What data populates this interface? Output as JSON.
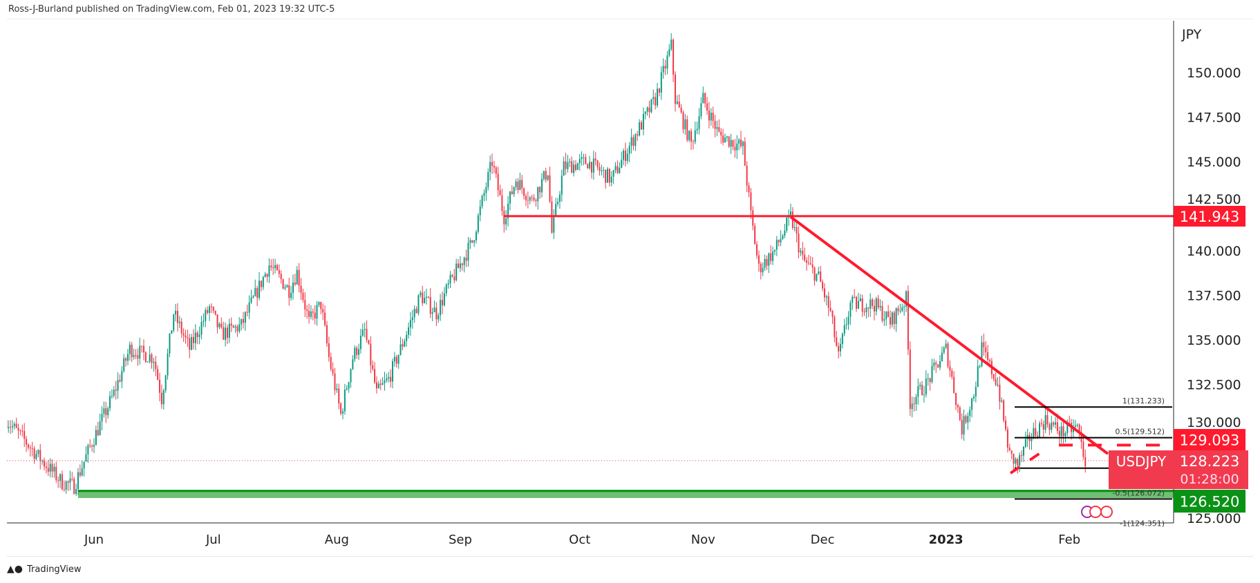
{
  "header": {
    "published": "Ross-J-Burland published on TradingView.com, Feb 01, 2023 19:32 UTC-5"
  },
  "footer": {
    "brand": "TradingView"
  },
  "colors": {
    "up": "#089981",
    "down": "#f23645",
    "line": "#ff1a2e",
    "green": "#0a9216",
    "band": "#4caf50"
  },
  "chart_data": {
    "type": "candlestick",
    "symbol": "USDJPY",
    "currency_label": "JPY",
    "x_unit": "days since 2022-06-01",
    "key_prices": [
      [
        -22,
        130.5
      ],
      [
        -18,
        129.5
      ],
      [
        -13,
        128.2
      ],
      [
        -8,
        127
      ],
      [
        -5,
        126.8
      ],
      [
        -1,
        129
      ],
      [
        5,
        132
      ],
      [
        9,
        134.5
      ],
      [
        15,
        134
      ],
      [
        17,
        131.7
      ],
      [
        20,
        136.5
      ],
      [
        24,
        134.5
      ],
      [
        29,
        136.8
      ],
      [
        32,
        135.3
      ],
      [
        37,
        135.8
      ],
      [
        44,
        139.2
      ],
      [
        49,
        137.8
      ],
      [
        51,
        138.8
      ],
      [
        54,
        136
      ],
      [
        57,
        137
      ],
      [
        59,
        134
      ],
      [
        62,
        130.8
      ],
      [
        65,
        134
      ],
      [
        68,
        135.5
      ],
      [
        71,
        132
      ],
      [
        74,
        132.8
      ],
      [
        77,
        134.5
      ],
      [
        82,
        137.5
      ],
      [
        86,
        136.5
      ],
      [
        89,
        138
      ],
      [
        95,
        140.5
      ],
      [
        100,
        145
      ],
      [
        103,
        141.9
      ],
      [
        106,
        144
      ],
      [
        110,
        142.8
      ],
      [
        114,
        144.5
      ],
      [
        115,
        141
      ],
      [
        118,
        144.7
      ],
      [
        124,
        145
      ],
      [
        130,
        144
      ],
      [
        136,
        146.5
      ],
      [
        141,
        148.5
      ],
      [
        145,
        151.5
      ],
      [
        146,
        148.5
      ],
      [
        150,
        146
      ],
      [
        153,
        148.5
      ],
      [
        157,
        146.5
      ],
      [
        163,
        145.8
      ],
      [
        165,
        142
      ],
      [
        167,
        139
      ],
      [
        171,
        140
      ],
      [
        175,
        141.9
      ],
      [
        178,
        139.5
      ],
      [
        182,
        138.5
      ],
      [
        185,
        136.5
      ],
      [
        187,
        134
      ],
      [
        190,
        137
      ],
      [
        196,
        137
      ],
      [
        200,
        136
      ],
      [
        204,
        137.3
      ],
      [
        205,
        131.5
      ],
      [
        209,
        132.5
      ],
      [
        214,
        134.5
      ],
      [
        218,
        130
      ],
      [
        221,
        132
      ],
      [
        223,
        134.5
      ],
      [
        227,
        132.5
      ],
      [
        230,
        128.5
      ],
      [
        232,
        128
      ],
      [
        235,
        129.5
      ],
      [
        239,
        130.5
      ],
      [
        243,
        129.8
      ],
      [
        247,
        130.1
      ],
      [
        249,
        128.2
      ]
    ],
    "y_ticks": [
      "150.000",
      "147.500",
      "145.000",
      "142.500",
      "140.000",
      "137.500",
      "135.000",
      "132.500",
      "130.000",
      "125.000"
    ],
    "y_tick_values": [
      150,
      147.5,
      145,
      142.5,
      140,
      137.5,
      135,
      132.5,
      130,
      125
    ],
    "ylim": [
      124.4,
      152.0
    ],
    "x_ticks": [
      {
        "label": "Jun",
        "day": 0
      },
      {
        "label": "Jul",
        "day": 30
      },
      {
        "label": "Aug",
        "day": 61
      },
      {
        "label": "Sep",
        "day": 92
      },
      {
        "label": "Oct",
        "day": 122
      },
      {
        "label": "Nov",
        "day": 153
      },
      {
        "label": "Dec",
        "day": 183
      },
      {
        "label": "2023",
        "day": 214,
        "bold": true
      },
      {
        "label": "Feb",
        "day": 245
      }
    ],
    "resistance": {
      "price": 141.943,
      "label": "141.943",
      "from_day": 103
    },
    "support": {
      "price": 126.52,
      "label": "126.520",
      "from_day": -4
    },
    "trendline": {
      "from": [
        175,
        141.9
      ],
      "to": [
        252,
        128.3
      ]
    },
    "dashed_level": {
      "price": 129.093,
      "label": "129.093"
    },
    "last": {
      "symbol": "USDJPY",
      "price": 128.223,
      "label": "128.223",
      "countdown": "01:28:00"
    },
    "fib": [
      {
        "label": "1(131.233)",
        "price": 131.233
      },
      {
        "label": "0.5(129.512)",
        "price": 129.512
      },
      {
        "label": "",
        "price": 127.8
      },
      {
        "label": "-0.5(126.072)",
        "price": 126.072
      },
      {
        "label": "-1(124.351)",
        "price": 124.351
      }
    ]
  }
}
